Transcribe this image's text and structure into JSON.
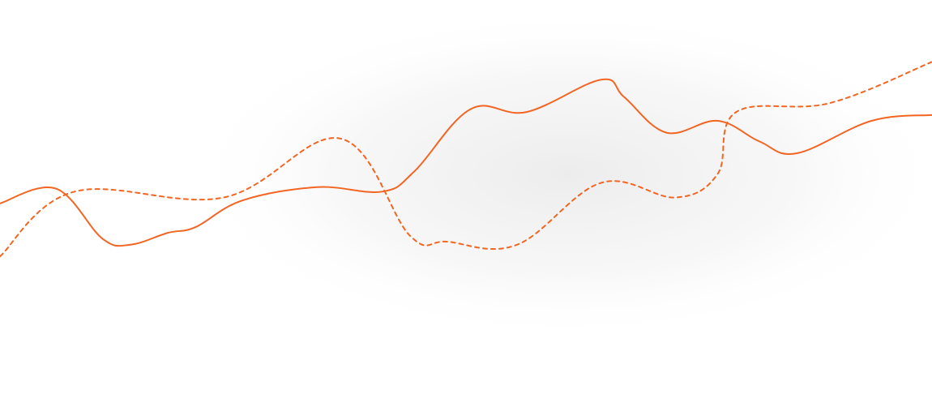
{
  "chart_data": {
    "type": "line",
    "title": "",
    "xlabel": "",
    "ylabel": "",
    "grid": false,
    "legend": "none",
    "axes_visible": false,
    "xlim": [
      0,
      20
    ],
    "ylim": [
      0,
      100
    ],
    "series": [
      {
        "style": "solid",
        "color": "#f26522",
        "x": [
          0,
          1.2,
          2.2,
          2.8,
          3.6,
          4.2,
          5.2,
          6.8,
          8.2,
          8.9,
          10.1,
          11.3,
          12.9,
          13.4,
          14.3,
          15.4,
          16.3,
          17.1,
          18.7,
          20
        ],
        "y": [
          42,
          47,
          30,
          28,
          32,
          34,
          43,
          47.5,
          46,
          53,
          74,
          73,
          84,
          78,
          66,
          70,
          63,
          59,
          70,
          72
        ]
      },
      {
        "style": "dashed",
        "color": "#f26522",
        "x": [
          0,
          1.6,
          4.8,
          7.3,
          8.8,
          9.6,
          11.1,
          12.9,
          14.5,
          15.4,
          15.8,
          17.8,
          20
        ],
        "y": [
          24,
          46,
          44,
          64,
          31,
          29,
          28,
          49,
          44,
          52,
          73,
          76,
          90
        ]
      }
    ]
  }
}
